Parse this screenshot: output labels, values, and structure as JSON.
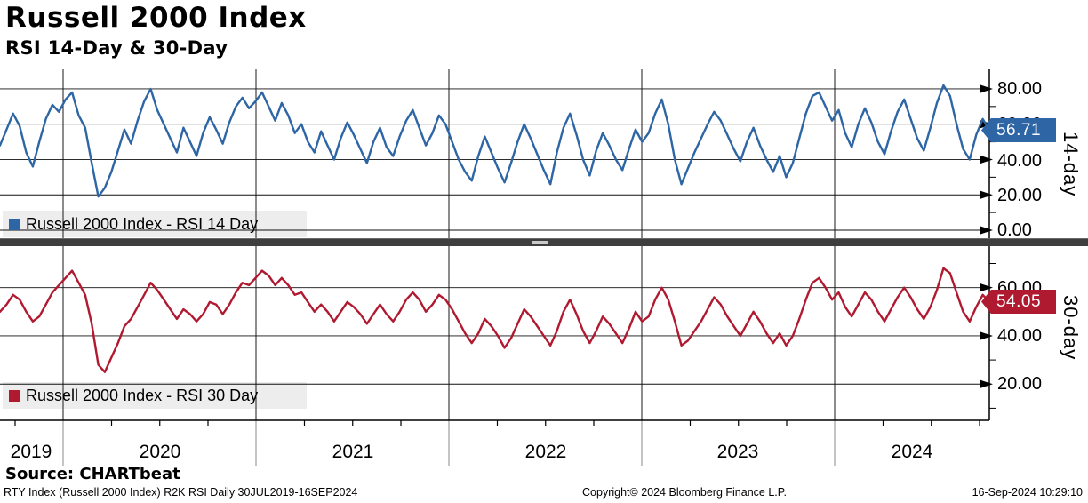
{
  "header": {
    "title": "Russell 2000 Index",
    "subtitle": "RSI 14-Day & 30-Day"
  },
  "source_line": "Source: CHARTbeat",
  "footer": {
    "left": "RTY Index (Russell 2000 Index) R2K RSI  Daily 30JUL2019-16SEP2024",
    "center": "Copyright© 2024 Bloomberg Finance L.P.",
    "right": "16-Sep-2024 10:29:10"
  },
  "x_axis": {
    "year_labels": [
      "2019",
      "2020",
      "2021",
      "2022",
      "2023",
      "2024"
    ]
  },
  "colors": {
    "rsi14": "#2D65A5",
    "rsi30": "#B01A31",
    "legend_bg": "#EDEDED",
    "separator": "#3E3E3E"
  },
  "chart_data": [
    {
      "type": "line",
      "name": "Russell 2000 Index - RSI 14 Day",
      "panel_label": "14-day",
      "color": "#2D65A5",
      "last_value": "56.71",
      "x_start": "30JUL2019",
      "x_end": "16SEP2024",
      "ylim": [
        -4.8,
        91.5
      ],
      "y_tick_values": [
        80,
        60,
        40,
        20,
        0
      ],
      "y_ticks": [
        "80.00",
        "60.00",
        "40.00",
        "20.00",
        "0.00"
      ],
      "values": [
        48,
        57,
        66,
        59,
        44,
        36,
        50,
        63,
        71,
        67,
        74,
        78,
        65,
        58,
        38,
        19,
        24,
        33,
        45,
        57,
        49,
        62,
        73,
        80,
        68,
        60,
        52,
        44,
        58,
        50,
        42,
        55,
        64,
        57,
        49,
        61,
        70,
        75,
        69,
        73,
        78,
        70,
        62,
        72,
        65,
        55,
        60,
        50,
        44,
        56,
        48,
        40,
        52,
        61,
        54,
        46,
        38,
        50,
        58,
        47,
        42,
        53,
        62,
        68,
        58,
        48,
        55,
        65,
        60,
        50,
        40,
        33,
        28,
        42,
        53,
        44,
        35,
        27,
        38,
        50,
        60,
        52,
        43,
        34,
        26,
        44,
        58,
        66,
        54,
        40,
        31,
        45,
        55,
        48,
        40,
        34,
        46,
        57,
        50,
        55,
        66,
        74,
        60,
        40,
        26,
        35,
        44,
        52,
        60,
        67,
        62,
        54,
        46,
        39,
        50,
        58,
        48,
        40,
        33,
        42,
        30,
        38,
        52,
        66,
        76,
        78,
        70,
        62,
        68,
        55,
        47,
        60,
        69,
        61,
        50,
        43,
        56,
        67,
        74,
        63,
        52,
        45,
        58,
        72,
        82,
        76,
        60,
        46,
        40,
        54,
        63,
        56.71
      ]
    },
    {
      "type": "line",
      "name": "Russell 2000 Index - RSI 30 Day",
      "panel_label": "30-day",
      "color": "#B01A31",
      "last_value": "54.05",
      "x_start": "30JUL2019",
      "x_end": "16SEP2024",
      "ylim": [
        5,
        77.2
      ],
      "y_tick_values": [
        60,
        40,
        20
      ],
      "y_ticks": [
        "60.00",
        "40.00",
        "20.00"
      ],
      "values": [
        50,
        53,
        57,
        55,
        50,
        46,
        48,
        53,
        58,
        61,
        64,
        67,
        62,
        57,
        45,
        28,
        25,
        31,
        37,
        44,
        47,
        52,
        57,
        62,
        59,
        55,
        51,
        47,
        51,
        49,
        46,
        49,
        54,
        53,
        49,
        53,
        58,
        62,
        61,
        64,
        67,
        65,
        61,
        64,
        61,
        57,
        58,
        54,
        50,
        53,
        50,
        46,
        50,
        54,
        52,
        49,
        45,
        49,
        53,
        49,
        46,
        50,
        55,
        58,
        55,
        50,
        53,
        57,
        55,
        51,
        46,
        41,
        37,
        41,
        47,
        44,
        40,
        35,
        39,
        45,
        51,
        48,
        44,
        40,
        36,
        42,
        50,
        55,
        49,
        42,
        37,
        42,
        48,
        45,
        41,
        37,
        43,
        50,
        46,
        48,
        55,
        60,
        55,
        46,
        36,
        38,
        42,
        46,
        51,
        56,
        53,
        48,
        44,
        40,
        45,
        50,
        46,
        41,
        37,
        41,
        36,
        40,
        47,
        55,
        62,
        64,
        60,
        55,
        58,
        52,
        48,
        53,
        58,
        55,
        50,
        46,
        51,
        56,
        60,
        56,
        51,
        47,
        52,
        59,
        68,
        66,
        58,
        50,
        46,
        52,
        57,
        54.05
      ]
    }
  ]
}
